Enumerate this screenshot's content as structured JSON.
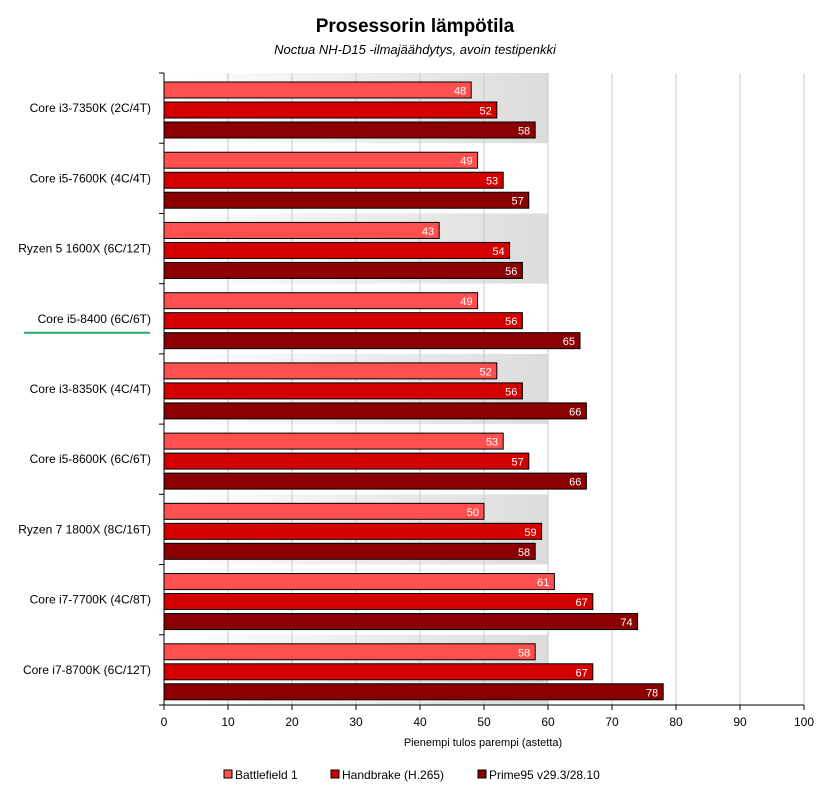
{
  "chart_data": {
    "type": "bar",
    "orientation": "horizontal",
    "title": "Prosessorin lämpötila",
    "subtitle": "Noctua NH-D15 -ilmajäähdytys, avoin testipenkki",
    "xlabel": "Pienempi tulos parempi (astetta)",
    "xlim": [
      0,
      100
    ],
    "xticks": [
      0,
      10,
      20,
      30,
      40,
      50,
      60,
      70,
      80,
      90,
      100
    ],
    "grid": true,
    "legend_position": "bottom",
    "highlighted_category": "Core i5-8400 (6C/6T)",
    "categories": [
      "Core i3-7350K (2C/4T)",
      "Core i5-7600K (4C/4T)",
      "Ryzen 5 1600X (6C/12T)",
      "Core i5-8400 (6C/6T)",
      "Core i3-8350K (4C/4T)",
      "Core i5-8600K (6C/6T)",
      "Ryzen 7 1800X (8C/16T)",
      "Core i7-7700K (4C/8T)",
      "Core i7-8700K (6C/12T)"
    ],
    "series": [
      {
        "name": "Battlefield 1",
        "color": "#ff5050",
        "values": [
          48,
          49,
          43,
          49,
          52,
          53,
          50,
          61,
          58
        ]
      },
      {
        "name": "Handbrake (H.265)",
        "color": "#d40000",
        "values": [
          52,
          53,
          54,
          56,
          56,
          57,
          59,
          67,
          67
        ]
      },
      {
        "name": "Prime95 v29.3/28.10",
        "color": "#8b0000",
        "values": [
          58,
          57,
          56,
          65,
          66,
          66,
          58,
          74,
          78
        ]
      }
    ]
  },
  "colors": {
    "plot_background": "#ffffff",
    "gradient_light": "#ffffff",
    "gradient_dark": "#dcdcdc",
    "gridline": "#c8c8c8",
    "highlight_underline": "#2aa86a"
  }
}
